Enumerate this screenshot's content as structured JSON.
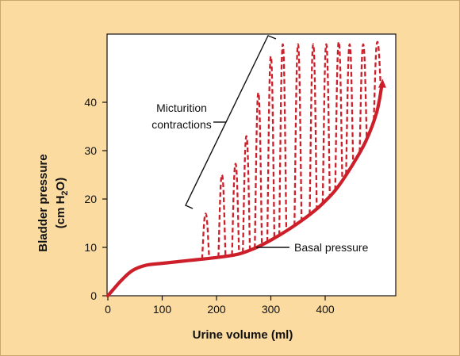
{
  "chart_data": {
    "type": "line",
    "title": "",
    "xlabel": "Urine volume (ml)",
    "ylabel": {
      "line1": "Bladder pressure",
      "line2_prefix": "(cm H",
      "line2_sub": "2",
      "line2_suffix": "O)"
    },
    "xlim": [
      0,
      520
    ],
    "ylim": [
      0,
      53
    ],
    "xticks": [
      0,
      100,
      200,
      300,
      400
    ],
    "yticks": [
      0,
      10,
      20,
      30,
      40
    ],
    "grid": false,
    "colors": {
      "curve": "#cc1f2a",
      "axis": "#111111",
      "panel": "#ffffff",
      "background": "#fbdba0"
    },
    "series": [
      {
        "name": "Basal pressure",
        "style": "solid",
        "x": [
          0,
          10,
          25,
          45,
          70,
          100,
          150,
          200,
          240,
          270,
          300,
          330,
          360,
          390,
          420,
          450,
          475,
          495,
          505
        ],
        "y": [
          0,
          1.3,
          3.2,
          5.2,
          6.3,
          6.7,
          7.3,
          7.9,
          8.6,
          9.8,
          11.5,
          13.5,
          15.8,
          18.5,
          22,
          27,
          32,
          38,
          44
        ]
      },
      {
        "name": "Micturition contractions",
        "style": "dashed",
        "peaks": [
          {
            "x": 180,
            "y": 17
          },
          {
            "x": 210,
            "y": 25
          },
          {
            "x": 235,
            "y": 27.3
          },
          {
            "x": 255,
            "y": 33
          },
          {
            "x": 277,
            "y": 42
          },
          {
            "x": 300,
            "y": 49.5
          },
          {
            "x": 322,
            "y": 52
          },
          {
            "x": 350,
            "y": 52
          },
          {
            "x": 378,
            "y": 52
          },
          {
            "x": 402,
            "y": 52
          },
          {
            "x": 425,
            "y": 52.5
          },
          {
            "x": 445,
            "y": 52
          },
          {
            "x": 470,
            "y": 52
          },
          {
            "x": 496,
            "y": 52.5
          }
        ]
      }
    ],
    "annotations": {
      "contractions_line1": "Micturition",
      "contractions_line2": "contractions",
      "basal": "Basal pressure"
    }
  }
}
